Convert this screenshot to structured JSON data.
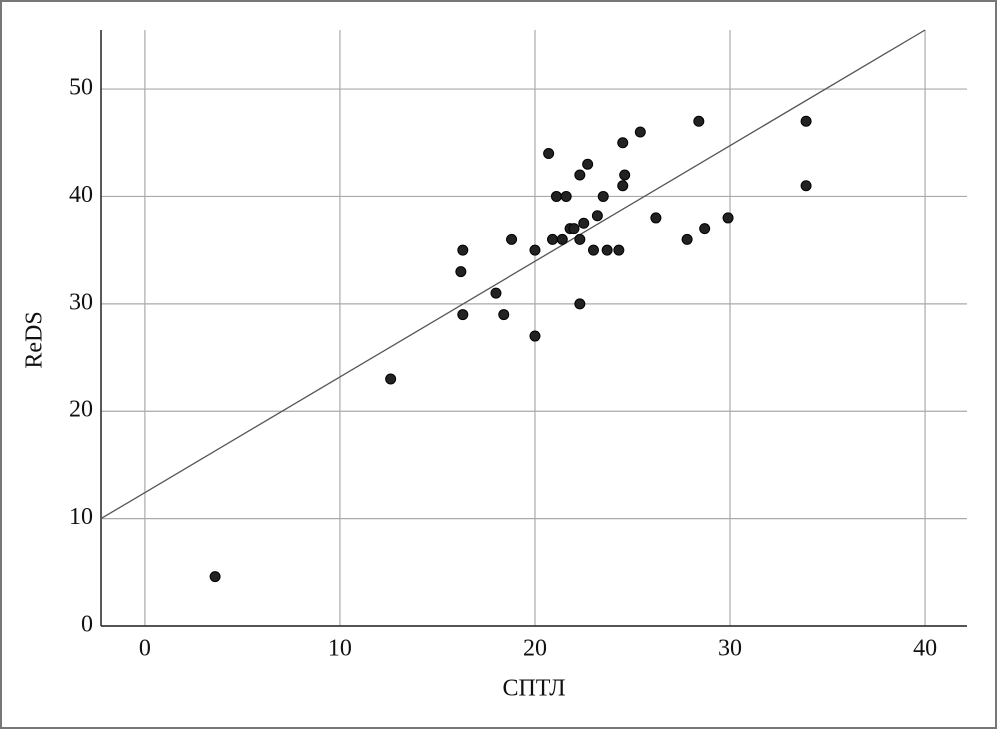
{
  "chart_data": {
    "type": "scatter",
    "x_label": "СПТЛ",
    "y_label": "ReDS",
    "xlim": [
      -2.25,
      42.15
    ],
    "ylim": [
      0,
      55.5
    ],
    "xticks": [
      0,
      10,
      20,
      30,
      40
    ],
    "yticks": [
      0,
      10,
      20,
      30,
      40,
      50
    ],
    "grid": true,
    "color": "#222222",
    "line_color": "#555555",
    "trend_line": {
      "x": [
        -2.25,
        40
      ],
      "y": [
        10,
        55.5
      ]
    },
    "x": [
      3.6,
      12.6,
      16.2,
      16.3,
      16.3,
      18,
      18.4,
      18.8,
      20,
      20,
      20.7,
      20.9,
      21.1,
      21.4,
      21.6,
      21.8,
      22,
      22.3,
      22.3,
      22.3,
      22.5,
      22.7,
      23,
      23.2,
      23.5,
      23.7,
      24.3,
      24.5,
      24.5,
      24.6,
      25.4,
      26.2,
      27.8,
      28.4,
      28.7,
      29.9,
      33.9,
      33.9
    ],
    "y": [
      4.6,
      23,
      33,
      35,
      29,
      31,
      29,
      36,
      35,
      27,
      44,
      36,
      40,
      36,
      40,
      37,
      37,
      36,
      30,
      42,
      37.5,
      43,
      35,
      38.2,
      40,
      35,
      35,
      45,
      41,
      42,
      46,
      38,
      36,
      47,
      37,
      38,
      47,
      41
    ]
  }
}
